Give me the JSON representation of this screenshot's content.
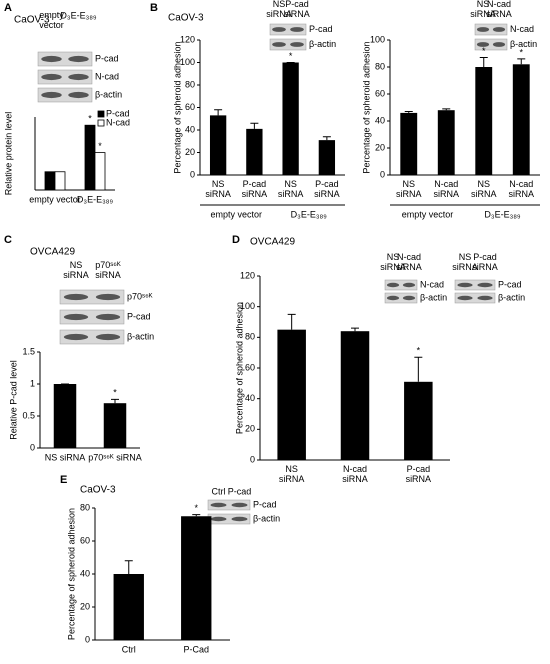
{
  "chart_data": [
    {
      "type": "bar",
      "label": "A",
      "subtitle": "CaOV-3",
      "y_label": "Relative protein level",
      "categories": [
        "empty vector",
        "D₃E-E₃₈₉"
      ],
      "series": [
        {
          "name": "P-cad",
          "color": "#000000",
          "values": [
            1,
            3.55
          ],
          "annotations": [
            null,
            "*"
          ]
        },
        {
          "name": "N-cad",
          "color": "#ffffff",
          "values": [
            1,
            2.05
          ],
          "annotations": [
            null,
            "*"
          ]
        }
      ],
      "ylim": [
        0,
        4
      ],
      "legend": "top-right",
      "blots": [
        {
          "columns": [
            "empty vector",
            "D₃E-E₃₈₉"
          ],
          "rows": [
            "P-cad",
            "N-cad",
            "β-actin"
          ]
        }
      ]
    },
    {
      "type": "bar",
      "label": "B",
      "subtitle": "CaOV-3",
      "y_label": "Percentage of spheroid adhesion",
      "categories": [
        "NS siRNA",
        "P-cad siRNA",
        "NS siRNA",
        "P-cad siRNA"
      ],
      "groups": [
        "empty vector",
        "D₃E-E₃₈₉"
      ],
      "color": "#000000",
      "values": [
        53,
        41,
        100,
        31
      ],
      "errors": [
        5,
        5,
        0,
        3
      ],
      "annotations": [
        null,
        null,
        "*",
        null
      ],
      "ylim": [
        0,
        120
      ],
      "yticks": [
        0,
        20,
        40,
        60,
        80,
        100,
        120
      ],
      "blots": [
        {
          "columns": [
            "NS siRNA",
            "P-cad siRNA"
          ],
          "rows": [
            "P-cad",
            "β-actin"
          ]
        }
      ]
    },
    {
      "type": "bar",
      "y_label": "Percentage of spheroid adhesion",
      "categories": [
        "NS siRNA",
        "N-cad siRNA",
        "NS siRNA",
        "N-cad siRNA"
      ],
      "groups": [
        "empty vector",
        "D₃E-E₃₈₉"
      ],
      "color": "#000000",
      "values": [
        46,
        48,
        80,
        82
      ],
      "errors": [
        1,
        1,
        7,
        4
      ],
      "annotations": [
        null,
        null,
        "*",
        "*"
      ],
      "ylim": [
        0,
        100
      ],
      "yticks": [
        0,
        20,
        40,
        60,
        80,
        100
      ],
      "blots": [
        {
          "columns": [
            "NS siRNA",
            "N-cad siRNA"
          ],
          "rows": [
            "N-cad",
            "β-actin"
          ]
        }
      ]
    },
    {
      "type": "bar",
      "label": "C",
      "subtitle": "OVCA429",
      "y_label": "Relative P-cad level",
      "categories": [
        "NS siRNA",
        "p70ˢ⁶ᴷ siRNA"
      ],
      "color": "#000000",
      "values": [
        1,
        0.7
      ],
      "errors": [
        0,
        0.06
      ],
      "annotations": [
        null,
        "*"
      ],
      "ylim": [
        0,
        1.5
      ],
      "yticks": [
        0,
        0.5,
        1,
        1.5
      ],
      "blots": [
        {
          "columns": [
            "NS siRNA",
            "p70ˢ⁶ᴷ siRNA"
          ],
          "rows": [
            "p70ˢ⁶ᴷ",
            "P-cad",
            "β-actin"
          ]
        }
      ]
    },
    {
      "type": "bar",
      "label": "D",
      "subtitle": "OVCA429",
      "y_label": "Percentage of spheroid adhesion",
      "categories": [
        "NS siRNA",
        "N-cad siRNA",
        "P-cad siRNA"
      ],
      "color": "#000000",
      "values": [
        85,
        84,
        51
      ],
      "errors": [
        10,
        2,
        16
      ],
      "annotations": [
        null,
        null,
        "*"
      ],
      "ylim": [
        0,
        120
      ],
      "yticks": [
        0,
        20,
        40,
        60,
        80,
        100,
        120
      ],
      "blots": [
        {
          "columns": [
            "NS siRNA",
            "N-cad siRNA"
          ],
          "rows": [
            "N-cad",
            "β-actin"
          ]
        },
        {
          "columns": [
            "NS siRNA",
            "P-cad siRNA"
          ],
          "rows": [
            "P-cad",
            "β-actin"
          ]
        }
      ]
    },
    {
      "type": "bar",
      "label": "E",
      "subtitle": "CaOV-3",
      "y_label": "Percentage of spheroid adhesion",
      "categories": [
        "Ctrl",
        "P-Cad"
      ],
      "color": "#000000",
      "values": [
        40,
        75
      ],
      "errors": [
        8,
        1
      ],
      "annotations": [
        null,
        "*"
      ],
      "ylim": [
        0,
        80
      ],
      "yticks": [
        0,
        20,
        40,
        60,
        80
      ],
      "blots": [
        {
          "columns": [
            "Ctrl",
            "P-cad"
          ],
          "rows": [
            "P-cad",
            "β-actin"
          ]
        }
      ]
    }
  ]
}
